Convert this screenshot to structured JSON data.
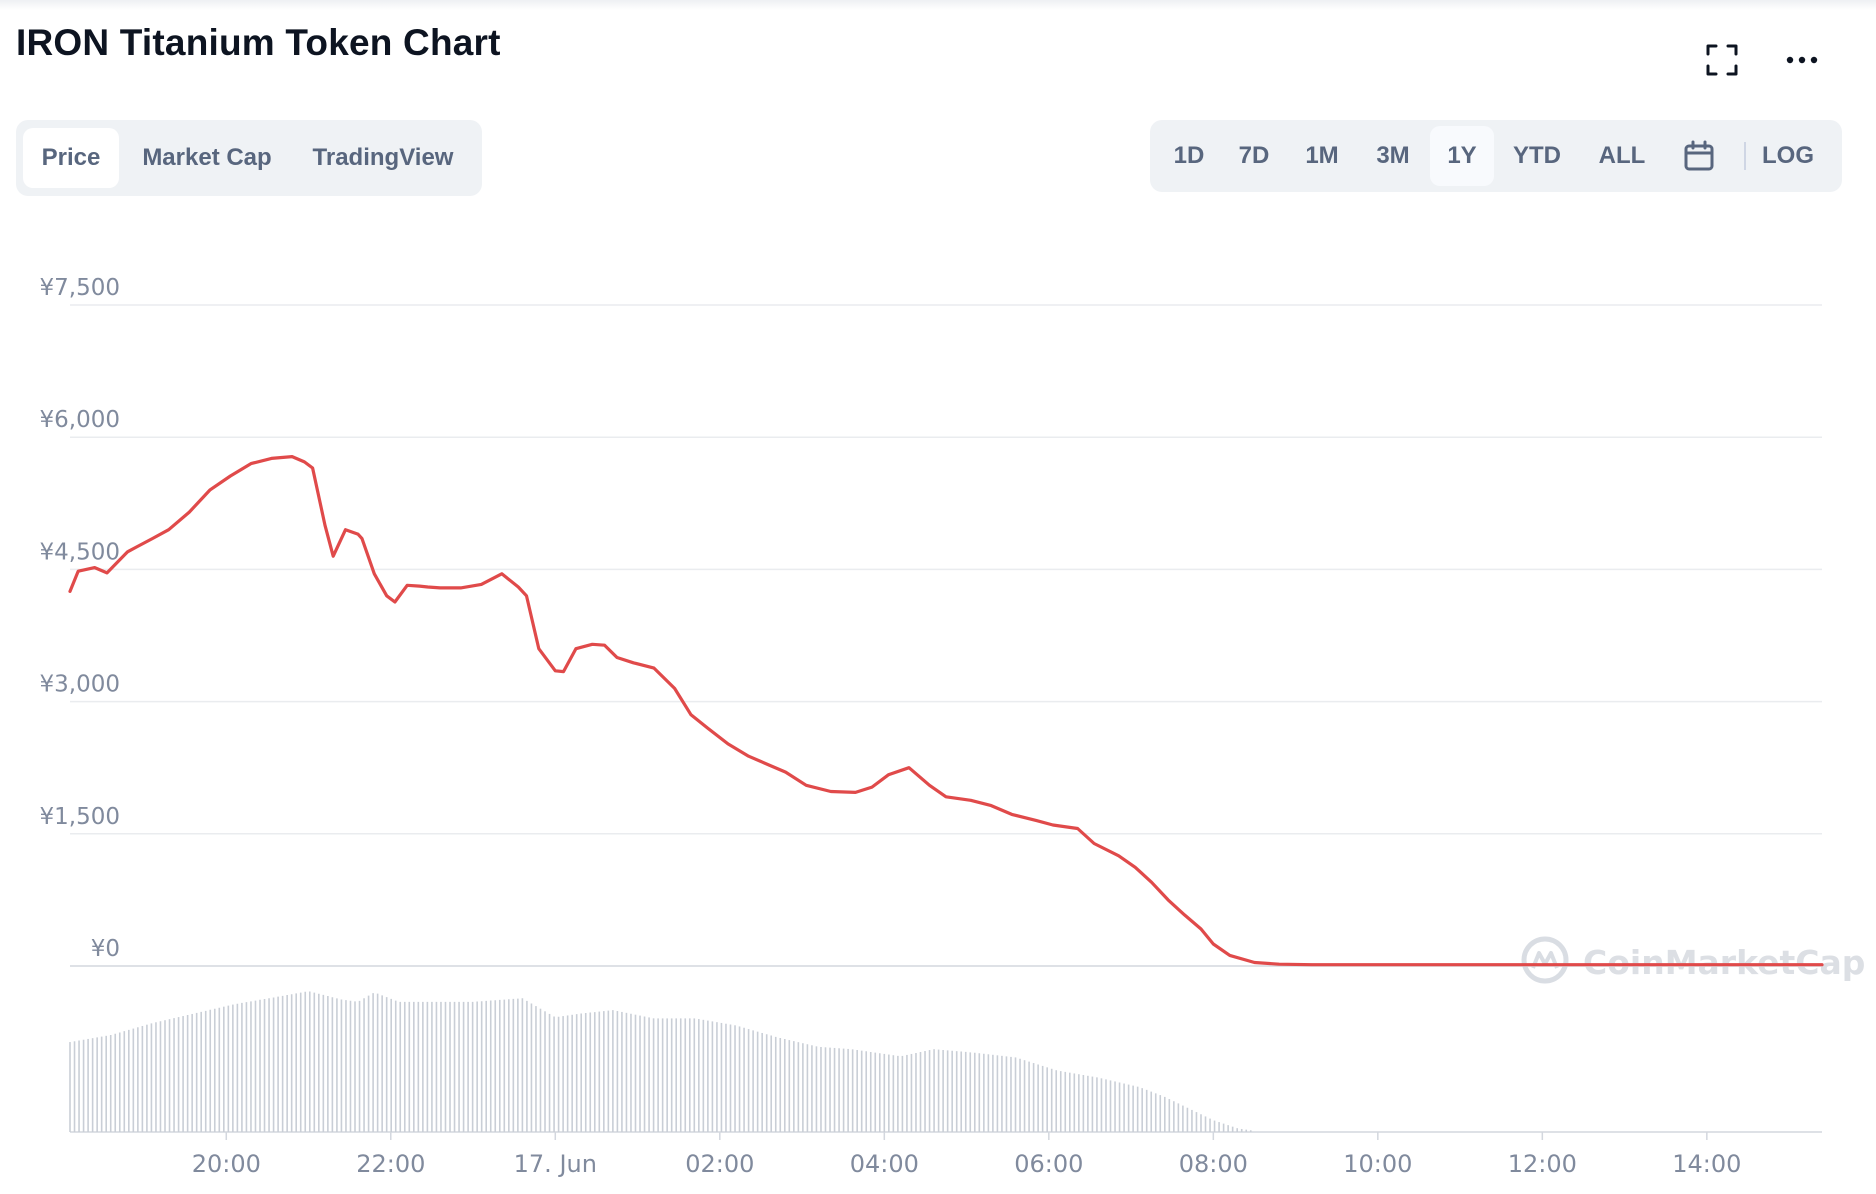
{
  "title": "IRON Titanium Token Chart",
  "header_icons": {
    "fullscreen": "fullscreen-icon",
    "more": "more-options-icon"
  },
  "tabs": [
    {
      "label": "Price",
      "active": true
    },
    {
      "label": "Market Cap",
      "active": false
    },
    {
      "label": "TradingView",
      "active": false
    }
  ],
  "ranges": [
    {
      "label": "1D",
      "active": false
    },
    {
      "label": "7D",
      "active": false
    },
    {
      "label": "1M",
      "active": false
    },
    {
      "label": "3M",
      "active": false
    },
    {
      "label": "1Y",
      "active": true
    },
    {
      "label": "YTD",
      "active": false
    },
    {
      "label": "ALL",
      "active": false
    }
  ],
  "calendar_icon": "calendar-icon",
  "log_label": "LOG",
  "watermark": "CoinMarketCap",
  "colors": {
    "line": "#e04a4a",
    "grid": "#eaecef",
    "axis_text": "#808a9d",
    "volume": "#c9ced6",
    "tab_bg": "#eff2f5",
    "tab_text": "#58667e"
  },
  "chart_data": {
    "type": "line",
    "title": "",
    "xlabel": "",
    "ylabel": "",
    "y_tick_labels": [
      "¥0",
      "¥1,500",
      "¥3,000",
      "¥4,500",
      "¥6,000",
      "¥7,500"
    ],
    "y_ticks": [
      0,
      1500,
      3000,
      4500,
      6000,
      7500
    ],
    "ylim": [
      0,
      7500
    ],
    "x_tick_labels": [
      "20:00",
      "22:00",
      "17. Jun",
      "02:00",
      "04:00",
      "06:00",
      "08:00",
      "10:00",
      "12:00",
      "14:00"
    ],
    "x_ticks": [
      20,
      22,
      24,
      26,
      28,
      30,
      32,
      34,
      36,
      38
    ],
    "xlim": [
      18.1,
      39.4
    ],
    "x_unit": "hours since 16 Jun 00:00",
    "grid": true,
    "legend": "none",
    "series": [
      {
        "x": [
          18.1,
          18.2,
          18.4,
          18.55,
          18.8,
          18.9,
          19.1,
          19.3,
          19.55,
          19.8,
          20.05,
          20.3,
          20.55,
          20.8,
          20.95,
          21.05,
          21.2,
          21.3,
          21.45,
          21.6,
          21.65,
          21.8,
          21.95,
          22.05,
          22.2,
          22.35,
          22.45,
          22.6,
          22.85,
          23.1,
          23.35,
          23.55,
          23.65,
          23.8,
          24.0,
          24.1,
          24.25,
          24.45,
          24.6,
          24.75,
          24.95,
          25.2,
          25.45,
          25.65,
          25.85,
          26.1,
          26.35,
          26.6,
          26.8,
          27.05,
          27.35,
          27.65,
          27.85,
          28.05,
          28.3,
          28.55,
          28.75,
          29.05,
          29.3,
          29.55,
          29.85,
          30.05,
          30.35,
          30.55,
          30.85,
          31.05,
          31.25,
          31.45,
          31.65,
          31.85,
          32.0,
          32.2,
          32.5,
          32.8,
          33.2,
          34.0,
          35.0,
          36.0,
          37.0,
          38.0,
          39.4
        ],
        "y": [
          4250,
          4480,
          4520,
          4460,
          4700,
          4750,
          4850,
          4950,
          5150,
          5400,
          5560,
          5700,
          5760,
          5780,
          5720,
          5650,
          5000,
          4650,
          4950,
          4900,
          4850,
          4450,
          4200,
          4130,
          4320,
          4310,
          4300,
          4290,
          4290,
          4330,
          4450,
          4300,
          4200,
          3600,
          3350,
          3340,
          3600,
          3650,
          3640,
          3500,
          3440,
          3380,
          3150,
          2850,
          2700,
          2520,
          2380,
          2280,
          2200,
          2050,
          1980,
          1970,
          2030,
          2170,
          2250,
          2050,
          1920,
          1880,
          1820,
          1720,
          1650,
          1600,
          1560,
          1390,
          1250,
          1120,
          950,
          750,
          580,
          420,
          250,
          120,
          40,
          20,
          15,
          15,
          15,
          15,
          15,
          15,
          15
        ]
      }
    ],
    "volume": {
      "x": [
        18.1,
        18.6,
        19.1,
        19.6,
        20.1,
        20.6,
        21.0,
        21.4,
        21.6,
        21.8,
        22.1,
        22.5,
        23.0,
        23.6,
        24.0,
        24.3,
        24.7,
        25.2,
        25.7,
        26.2,
        26.7,
        27.2,
        27.6,
        28.2,
        28.6,
        29.1,
        29.6,
        30.1,
        30.6,
        31.1,
        31.4,
        31.7,
        32.0,
        32.3,
        32.5
      ],
      "y": [
        76,
        82,
        92,
        100,
        108,
        114,
        119,
        112,
        110,
        118,
        110,
        110,
        110,
        113,
        97,
        100,
        103,
        96,
        96,
        90,
        80,
        72,
        70,
        64,
        70,
        67,
        63,
        52,
        46,
        38,
        30,
        20,
        10,
        3,
        1
      ]
    }
  }
}
